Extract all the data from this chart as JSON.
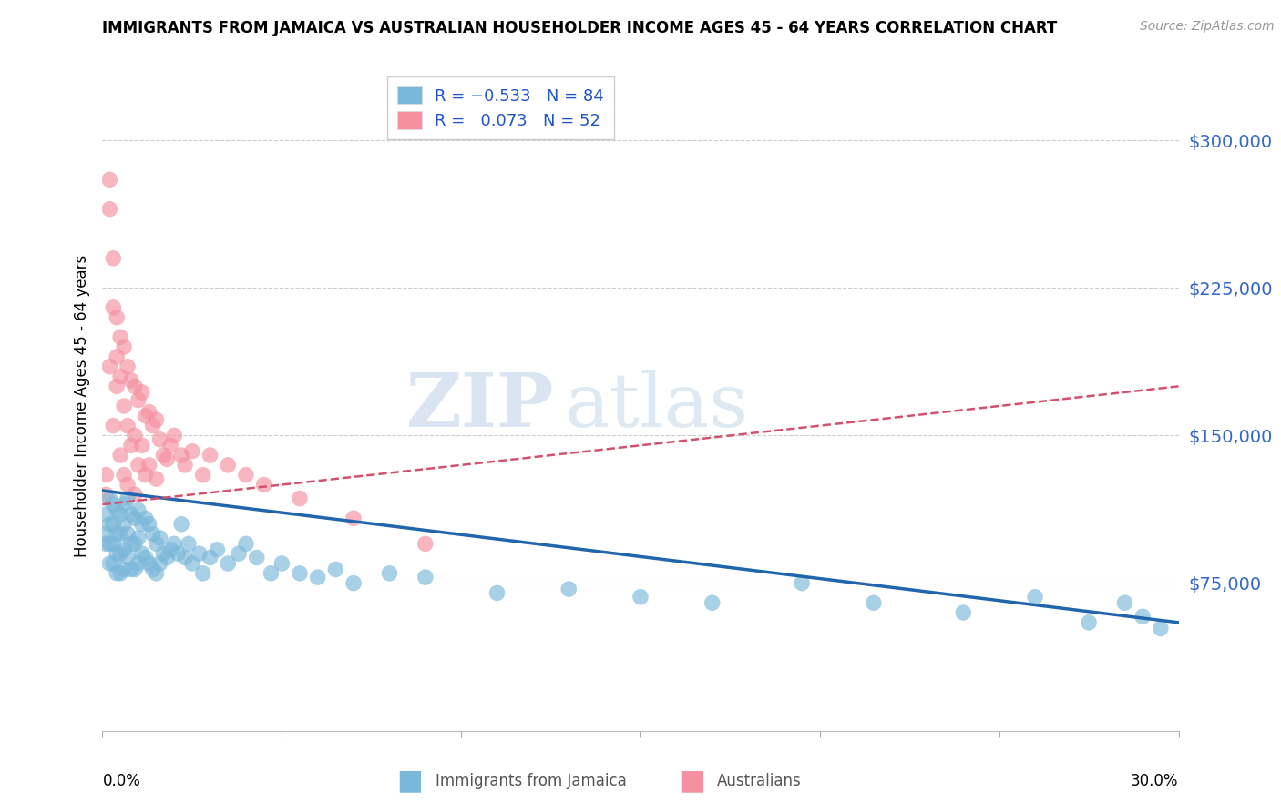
{
  "title": "IMMIGRANTS FROM JAMAICA VS AUSTRALIAN HOUSEHOLDER INCOME AGES 45 - 64 YEARS CORRELATION CHART",
  "source": "Source: ZipAtlas.com",
  "ylabel": "Householder Income Ages 45 - 64 years",
  "yaxis_labels": [
    "$75,000",
    "$150,000",
    "$225,000",
    "$300,000"
  ],
  "yaxis_values": [
    75000,
    150000,
    225000,
    300000
  ],
  "ylim": [
    0,
    330000
  ],
  "xlim": [
    0.0,
    0.3
  ],
  "blue_color": "#7ab8d9",
  "pink_color": "#f4909f",
  "blue_line_color": "#2166ac",
  "pink_line_color": "#d45070",
  "blue_x": [
    0.001,
    0.001,
    0.001,
    0.002,
    0.002,
    0.002,
    0.002,
    0.003,
    0.003,
    0.003,
    0.003,
    0.004,
    0.004,
    0.004,
    0.004,
    0.005,
    0.005,
    0.005,
    0.005,
    0.006,
    0.006,
    0.006,
    0.006,
    0.007,
    0.007,
    0.007,
    0.008,
    0.008,
    0.008,
    0.009,
    0.009,
    0.009,
    0.01,
    0.01,
    0.01,
    0.011,
    0.011,
    0.012,
    0.012,
    0.013,
    0.013,
    0.014,
    0.014,
    0.015,
    0.015,
    0.016,
    0.016,
    0.017,
    0.018,
    0.019,
    0.02,
    0.021,
    0.022,
    0.023,
    0.024,
    0.025,
    0.027,
    0.028,
    0.03,
    0.032,
    0.035,
    0.038,
    0.04,
    0.043,
    0.047,
    0.05,
    0.055,
    0.06,
    0.065,
    0.07,
    0.08,
    0.09,
    0.11,
    0.13,
    0.15,
    0.17,
    0.195,
    0.215,
    0.24,
    0.26,
    0.275,
    0.285,
    0.29,
    0.295
  ],
  "blue_y": [
    110000,
    100000,
    95000,
    118000,
    105000,
    95000,
    85000,
    115000,
    105000,
    95000,
    85000,
    112000,
    100000,
    90000,
    80000,
    110000,
    100000,
    90000,
    80000,
    115000,
    105000,
    92000,
    82000,
    118000,
    100000,
    88000,
    110000,
    95000,
    82000,
    108000,
    95000,
    82000,
    112000,
    98000,
    85000,
    105000,
    90000,
    108000,
    88000,
    105000,
    85000,
    100000,
    82000,
    95000,
    80000,
    98000,
    85000,
    90000,
    88000,
    92000,
    95000,
    90000,
    105000,
    88000,
    95000,
    85000,
    90000,
    80000,
    88000,
    92000,
    85000,
    90000,
    95000,
    88000,
    80000,
    85000,
    80000,
    78000,
    82000,
    75000,
    80000,
    78000,
    70000,
    72000,
    68000,
    65000,
    75000,
    65000,
    60000,
    68000,
    55000,
    65000,
    58000,
    52000
  ],
  "pink_x": [
    0.001,
    0.001,
    0.002,
    0.002,
    0.002,
    0.003,
    0.003,
    0.003,
    0.004,
    0.004,
    0.004,
    0.005,
    0.005,
    0.005,
    0.006,
    0.006,
    0.006,
    0.007,
    0.007,
    0.007,
    0.008,
    0.008,
    0.009,
    0.009,
    0.009,
    0.01,
    0.01,
    0.011,
    0.011,
    0.012,
    0.012,
    0.013,
    0.013,
    0.014,
    0.015,
    0.015,
    0.016,
    0.017,
    0.018,
    0.019,
    0.02,
    0.022,
    0.023,
    0.025,
    0.028,
    0.03,
    0.035,
    0.04,
    0.045,
    0.055,
    0.07,
    0.09
  ],
  "pink_y": [
    130000,
    120000,
    280000,
    265000,
    185000,
    240000,
    215000,
    155000,
    210000,
    190000,
    175000,
    200000,
    180000,
    140000,
    195000,
    165000,
    130000,
    185000,
    155000,
    125000,
    178000,
    145000,
    175000,
    150000,
    120000,
    168000,
    135000,
    172000,
    145000,
    160000,
    130000,
    162000,
    135000,
    155000,
    158000,
    128000,
    148000,
    140000,
    138000,
    145000,
    150000,
    140000,
    135000,
    142000,
    130000,
    140000,
    135000,
    130000,
    125000,
    118000,
    108000,
    95000
  ]
}
